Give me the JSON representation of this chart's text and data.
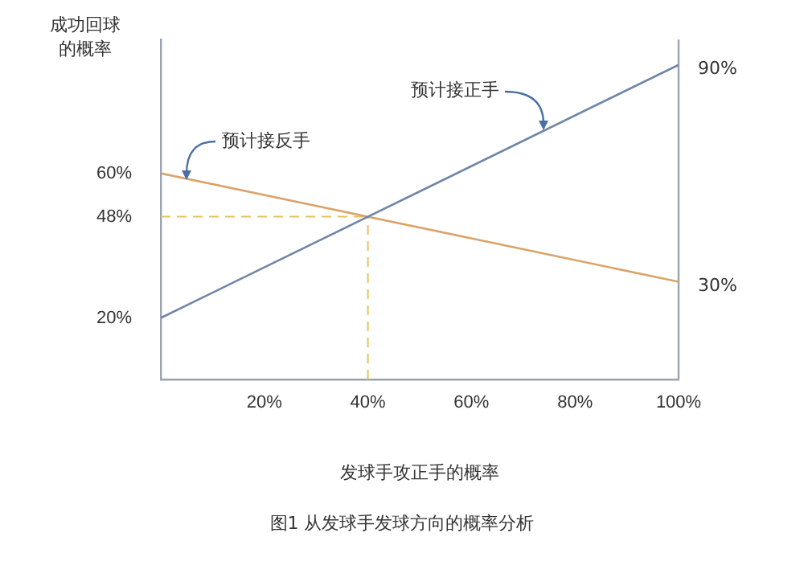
{
  "chart_data": {
    "type": "line",
    "ylabel": "成功回球的概率",
    "xlabel": "发球手攻正手的概率",
    "x": [
      0,
      100
    ],
    "series": [
      {
        "color": "#6f86a8",
        "values": [
          20,
          90
        ]
      },
      {
        "color": "#d9a46a",
        "values": [
          60,
          30
        ]
      }
    ],
    "xlim": [
      0,
      100
    ],
    "xticks": [
      {
        "value": 20,
        "label": "20%"
      },
      {
        "value": 40,
        "label": "40%"
      },
      {
        "value": 60,
        "label": "60%"
      },
      {
        "value": 80,
        "label": "80%"
      },
      {
        "value": 100,
        "label": "100%"
      }
    ],
    "ylim": [
      3,
      97
    ],
    "yticks": [
      {
        "value": 20,
        "label": "20%"
      },
      {
        "value": 48,
        "label": "48%"
      },
      {
        "value": 60,
        "label": "60%"
      }
    ],
    "ref_lines": [
      {
        "axis": "y",
        "value": 48,
        "color": "#e8c060",
        "line_style": "dashed"
      },
      {
        "axis": "x",
        "value": 40,
        "color": "#e8c060",
        "line_style": "dashed"
      }
    ],
    "annotations": [
      {
        "text": "90%",
        "x": 100,
        "y": 90
      },
      {
        "text": "30%",
        "x": 100,
        "y": 30
      },
      {
        "text": "预计接正手",
        "x": 74,
        "y": 72
      },
      {
        "text": "预计接反手",
        "x": 5,
        "y": 58
      },
      "图1 从发球手发球方向的概率分析"
    ],
    "grid": false,
    "legend": false,
    "marker": "none",
    "line_style": "solid"
  }
}
